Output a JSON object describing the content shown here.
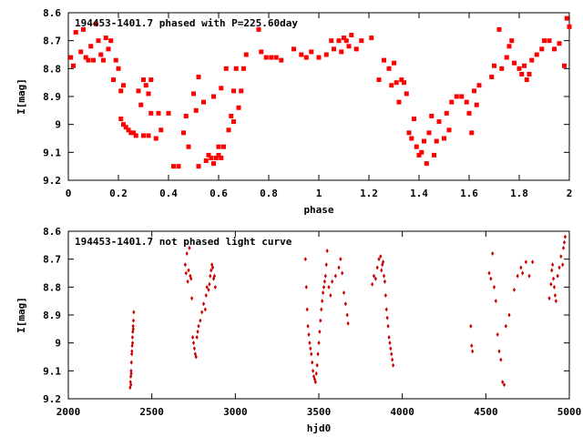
{
  "chart_data": [
    {
      "type": "scatter",
      "title": "194453-1401.7 phased with P=225.60day",
      "xlabel": "phase",
      "ylabel": "I[mag]",
      "xlim": [
        0,
        2
      ],
      "ylim": [
        9.2,
        8.6
      ],
      "y_inverted": true,
      "xticks": [
        "0",
        "0.2",
        "0.4",
        "0.6",
        "0.8",
        "1",
        "1.2",
        "1.4",
        "1.6",
        "1.8",
        "2"
      ],
      "yticks": [
        "8.6",
        "8.7",
        "8.8",
        "8.9",
        "9",
        "9.1",
        "9.2"
      ],
      "marker": "filled-square",
      "color": "#ff0000",
      "points": [
        [
          0.01,
          8.76
        ],
        [
          0.02,
          8.79
        ],
        [
          0.03,
          8.67
        ],
        [
          0.05,
          8.74
        ],
        [
          0.06,
          8.66
        ],
        [
          0.07,
          8.76
        ],
        [
          0.08,
          8.77
        ],
        [
          0.09,
          8.72
        ],
        [
          0.1,
          8.77
        ],
        [
          0.11,
          8.64
        ],
        [
          0.12,
          8.7
        ],
        [
          0.13,
          8.75
        ],
        [
          0.14,
          8.77
        ],
        [
          0.15,
          8.69
        ],
        [
          0.16,
          8.73
        ],
        [
          0.17,
          8.7
        ],
        [
          0.18,
          8.84
        ],
        [
          0.19,
          8.77
        ],
        [
          0.2,
          8.8
        ],
        [
          0.21,
          8.88
        ],
        [
          0.22,
          8.86
        ],
        [
          0.21,
          8.98
        ],
        [
          0.22,
          9.0
        ],
        [
          0.23,
          9.01
        ],
        [
          0.24,
          9.02
        ],
        [
          0.25,
          9.03
        ],
        [
          0.26,
          9.03
        ],
        [
          0.27,
          9.04
        ],
        [
          0.28,
          8.88
        ],
        [
          0.29,
          8.93
        ],
        [
          0.3,
          8.84
        ],
        [
          0.31,
          8.86
        ],
        [
          0.32,
          8.89
        ],
        [
          0.33,
          8.84
        ],
        [
          0.3,
          9.04
        ],
        [
          0.32,
          9.04
        ],
        [
          0.33,
          8.96
        ],
        [
          0.35,
          9.05
        ],
        [
          0.36,
          8.96
        ],
        [
          0.37,
          9.02
        ],
        [
          0.4,
          8.96
        ],
        [
          0.42,
          9.15
        ],
        [
          0.44,
          9.15
        ],
        [
          0.46,
          9.03
        ],
        [
          0.47,
          8.97
        ],
        [
          0.48,
          9.08
        ],
        [
          0.5,
          8.89
        ],
        [
          0.51,
          8.95
        ],
        [
          0.52,
          8.83
        ],
        [
          0.52,
          9.15
        ],
        [
          0.54,
          8.92
        ],
        [
          0.55,
          9.13
        ],
        [
          0.56,
          9.11
        ],
        [
          0.57,
          9.12
        ],
        [
          0.58,
          8.9
        ],
        [
          0.58,
          9.14
        ],
        [
          0.59,
          9.12
        ],
        [
          0.6,
          9.08
        ],
        [
          0.6,
          9.11
        ],
        [
          0.61,
          8.87
        ],
        [
          0.61,
          9.12
        ],
        [
          0.62,
          9.08
        ],
        [
          0.63,
          8.8
        ],
        [
          0.64,
          9.02
        ],
        [
          0.65,
          8.97
        ],
        [
          0.66,
          8.88
        ],
        [
          0.66,
          8.99
        ],
        [
          0.67,
          8.8
        ],
        [
          0.68,
          8.94
        ],
        [
          0.69,
          8.88
        ],
        [
          0.7,
          8.8
        ],
        [
          0.71,
          8.75
        ],
        [
          0.76,
          8.66
        ],
        [
          0.77,
          8.74
        ],
        [
          0.79,
          8.76
        ],
        [
          0.81,
          8.76
        ],
        [
          0.83,
          8.76
        ],
        [
          0.85,
          8.77
        ],
        [
          0.9,
          8.73
        ],
        [
          0.93,
          8.75
        ],
        [
          0.95,
          8.76
        ],
        [
          0.97,
          8.74
        ],
        [
          1.0,
          8.76
        ],
        [
          1.03,
          8.75
        ],
        [
          1.05,
          8.7
        ],
        [
          1.06,
          8.73
        ],
        [
          1.08,
          8.7
        ],
        [
          1.09,
          8.74
        ],
        [
          1.1,
          8.69
        ],
        [
          1.11,
          8.7
        ],
        [
          1.12,
          8.72
        ],
        [
          1.13,
          8.68
        ],
        [
          1.15,
          8.73
        ],
        [
          1.17,
          8.7
        ],
        [
          1.21,
          8.69
        ],
        [
          1.24,
          8.84
        ],
        [
          1.26,
          8.77
        ],
        [
          1.28,
          8.8
        ],
        [
          1.29,
          8.86
        ],
        [
          1.3,
          8.78
        ],
        [
          1.31,
          8.85
        ],
        [
          1.32,
          8.92
        ],
        [
          1.33,
          8.84
        ],
        [
          1.34,
          8.85
        ],
        [
          1.35,
          8.89
        ],
        [
          1.36,
          9.03
        ],
        [
          1.37,
          9.05
        ],
        [
          1.38,
          8.98
        ],
        [
          1.39,
          9.08
        ],
        [
          1.4,
          9.11
        ],
        [
          1.41,
          9.1
        ],
        [
          1.42,
          9.06
        ],
        [
          1.43,
          9.14
        ],
        [
          1.44,
          9.03
        ],
        [
          1.45,
          8.97
        ],
        [
          1.46,
          9.11
        ],
        [
          1.47,
          9.06
        ],
        [
          1.48,
          8.99
        ],
        [
          1.5,
          9.05
        ],
        [
          1.51,
          8.96
        ],
        [
          1.52,
          9.02
        ],
        [
          1.53,
          8.92
        ],
        [
          1.55,
          8.9
        ],
        [
          1.57,
          8.9
        ],
        [
          1.59,
          8.92
        ],
        [
          1.6,
          8.96
        ],
        [
          1.61,
          9.03
        ],
        [
          1.62,
          8.88
        ],
        [
          1.63,
          8.93
        ],
        [
          1.64,
          8.86
        ],
        [
          1.69,
          8.83
        ],
        [
          1.7,
          8.79
        ],
        [
          1.72,
          8.66
        ],
        [
          1.73,
          8.8
        ],
        [
          1.75,
          8.76
        ],
        [
          1.76,
          8.72
        ],
        [
          1.77,
          8.7
        ],
        [
          1.78,
          8.78
        ],
        [
          1.8,
          8.8
        ],
        [
          1.81,
          8.82
        ],
        [
          1.82,
          8.79
        ],
        [
          1.83,
          8.84
        ],
        [
          1.84,
          8.82
        ],
        [
          1.85,
          8.77
        ],
        [
          1.87,
          8.75
        ],
        [
          1.89,
          8.73
        ],
        [
          1.9,
          8.7
        ],
        [
          1.92,
          8.7
        ],
        [
          1.94,
          8.73
        ],
        [
          1.96,
          8.71
        ],
        [
          1.98,
          8.79
        ],
        [
          1.99,
          8.62
        ],
        [
          2.0,
          8.65
        ]
      ]
    },
    {
      "type": "scatter",
      "title": "194453-1401.7 not phased light curve",
      "xlabel": "hjd0",
      "ylabel": "I[mag]",
      "xlim": [
        2000,
        5000
      ],
      "ylim": [
        9.2,
        8.6
      ],
      "y_inverted": true,
      "xticks": [
        "2000",
        "2500",
        "3000",
        "3500",
        "4000",
        "4500",
        "5000"
      ],
      "yticks": [
        "8.6",
        "8.7",
        "8.8",
        "8.9",
        "9",
        "9.1",
        "9.2"
      ],
      "marker": "filled-diamond",
      "color": "#cc0000",
      "points": [
        [
          2370,
          9.16
        ],
        [
          2372,
          9.14
        ],
        [
          2374,
          9.12
        ],
        [
          2376,
          9.1
        ],
        [
          2378,
          9.07
        ],
        [
          2380,
          9.04
        ],
        [
          2382,
          9.01
        ],
        [
          2384,
          8.98
        ],
        [
          2386,
          8.96
        ],
        [
          2388,
          8.94
        ],
        [
          2390,
          8.92
        ],
        [
          2392,
          8.89
        ],
        [
          2375,
          9.15
        ],
        [
          2377,
          9.11
        ],
        [
          2381,
          9.03
        ],
        [
          2385,
          9.0
        ],
        [
          2389,
          8.95
        ],
        [
          2700,
          8.72
        ],
        [
          2705,
          8.75
        ],
        [
          2710,
          8.68
        ],
        [
          2715,
          8.78
        ],
        [
          2720,
          8.74
        ],
        [
          2725,
          8.66
        ],
        [
          2730,
          8.76
        ],
        [
          2735,
          8.77
        ],
        [
          2740,
          8.84
        ],
        [
          2745,
          8.98
        ],
        [
          2750,
          9.0
        ],
        [
          2755,
          9.02
        ],
        [
          2760,
          9.04
        ],
        [
          2765,
          9.05
        ],
        [
          2770,
          8.98
        ],
        [
          2775,
          8.96
        ],
        [
          2780,
          8.94
        ],
        [
          2790,
          8.92
        ],
        [
          2800,
          8.89
        ],
        [
          2810,
          8.86
        ],
        [
          2820,
          8.88
        ],
        [
          2825,
          8.83
        ],
        [
          2830,
          8.8
        ],
        [
          2840,
          8.81
        ],
        [
          2845,
          8.79
        ],
        [
          2850,
          8.76
        ],
        [
          2855,
          8.74
        ],
        [
          2860,
          8.72
        ],
        [
          2865,
          8.73
        ],
        [
          2870,
          8.77
        ],
        [
          2875,
          8.76
        ],
        [
          2880,
          8.8
        ],
        [
          3420,
          8.7
        ],
        [
          3425,
          8.8
        ],
        [
          3430,
          8.88
        ],
        [
          3435,
          8.94
        ],
        [
          3440,
          8.97
        ],
        [
          3445,
          9.0
        ],
        [
          3450,
          9.02
        ],
        [
          3455,
          9.04
        ],
        [
          3460,
          9.07
        ],
        [
          3465,
          9.1
        ],
        [
          3470,
          9.12
        ],
        [
          3475,
          9.13
        ],
        [
          3480,
          9.14
        ],
        [
          3485,
          9.11
        ],
        [
          3490,
          9.08
        ],
        [
          3495,
          9.04
        ],
        [
          3500,
          9.0
        ],
        [
          3505,
          8.96
        ],
        [
          3510,
          8.92
        ],
        [
          3515,
          8.88
        ],
        [
          3520,
          8.85
        ],
        [
          3525,
          8.82
        ],
        [
          3530,
          8.8
        ],
        [
          3535,
          8.78
        ],
        [
          3540,
          8.76
        ],
        [
          3545,
          8.72
        ],
        [
          3550,
          8.67
        ],
        [
          3560,
          8.8
        ],
        [
          3570,
          8.83
        ],
        [
          3580,
          8.78
        ],
        [
          3600,
          8.76
        ],
        [
          3620,
          8.73
        ],
        [
          3630,
          8.7
        ],
        [
          3640,
          8.75
        ],
        [
          3650,
          8.82
        ],
        [
          3660,
          8.86
        ],
        [
          3670,
          8.9
        ],
        [
          3675,
          8.93
        ],
        [
          3820,
          8.79
        ],
        [
          3830,
          8.76
        ],
        [
          3840,
          8.77
        ],
        [
          3850,
          8.73
        ],
        [
          3860,
          8.7
        ],
        [
          3870,
          8.69
        ],
        [
          3875,
          8.74
        ],
        [
          3880,
          8.72
        ],
        [
          3885,
          8.71
        ],
        [
          3890,
          8.76
        ],
        [
          3895,
          8.78
        ],
        [
          3900,
          8.83
        ],
        [
          3905,
          8.88
        ],
        [
          3910,
          8.91
        ],
        [
          3915,
          8.94
        ],
        [
          3920,
          8.98
        ],
        [
          3925,
          9.0
        ],
        [
          3930,
          9.02
        ],
        [
          3935,
          9.04
        ],
        [
          3940,
          9.06
        ],
        [
          3945,
          9.08
        ],
        [
          4410,
          8.94
        ],
        [
          4415,
          9.01
        ],
        [
          4420,
          9.03
        ],
        [
          4520,
          8.75
        ],
        [
          4530,
          8.77
        ],
        [
          4540,
          8.68
        ],
        [
          4550,
          8.8
        ],
        [
          4560,
          8.85
        ],
        [
          4570,
          8.97
        ],
        [
          4580,
          9.03
        ],
        [
          4590,
          9.06
        ],
        [
          4600,
          9.14
        ],
        [
          4610,
          9.15
        ],
        [
          4620,
          8.94
        ],
        [
          4640,
          8.9
        ],
        [
          4670,
          8.81
        ],
        [
          4690,
          8.76
        ],
        [
          4710,
          8.73
        ],
        [
          4720,
          8.75
        ],
        [
          4740,
          8.71
        ],
        [
          4760,
          8.76
        ],
        [
          4780,
          8.71
        ],
        [
          4880,
          8.84
        ],
        [
          4890,
          8.79
        ],
        [
          4895,
          8.74
        ],
        [
          4900,
          8.72
        ],
        [
          4905,
          8.77
        ],
        [
          4910,
          8.8
        ],
        [
          4915,
          8.83
        ],
        [
          4920,
          8.85
        ],
        [
          4930,
          8.76
        ],
        [
          4940,
          8.73
        ],
        [
          4950,
          8.69
        ],
        [
          4960,
          8.72
        ],
        [
          4965,
          8.66
        ],
        [
          4970,
          8.64
        ],
        [
          4975,
          8.62
        ]
      ]
    }
  ]
}
